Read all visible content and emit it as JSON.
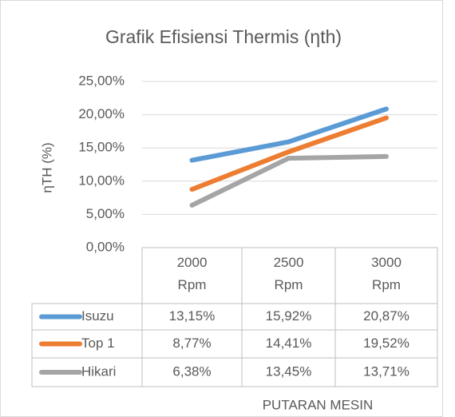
{
  "chart_data": {
    "type": "line",
    "title": "Grafik Efisiensi Thermis (ηth)",
    "x_label": "PUTARAN MESIN",
    "y_label": "ηTH (%)",
    "categories": [
      "2000 Rpm",
      "2500 Rpm",
      "3000 Rpm"
    ],
    "series": [
      {
        "name": "Isuzu",
        "color": "#5b9bd5",
        "values": [
          13.15,
          15.92,
          20.87
        ],
        "value_labels": [
          "13,15%",
          "15,92%",
          "20,87%"
        ]
      },
      {
        "name": "Top 1",
        "color": "#ed7d31",
        "values": [
          8.77,
          14.41,
          19.52
        ],
        "value_labels": [
          "8,77%",
          "14,41%",
          "19,52%"
        ]
      },
      {
        "name": "Hikari",
        "color": "#a5a5a5",
        "values": [
          6.38,
          13.45,
          13.71
        ],
        "value_labels": [
          "6,38%",
          "13,45%",
          "13,71%"
        ]
      }
    ],
    "ylim": [
      0,
      25
    ],
    "yticks": [
      {
        "value": 0,
        "label": "0,00%"
      },
      {
        "value": 5,
        "label": "5,00%"
      },
      {
        "value": 10,
        "label": "10,00%"
      },
      {
        "value": 15,
        "label": "15,00%"
      },
      {
        "value": 20,
        "label": "20,00%"
      },
      {
        "value": 25,
        "label": "25,00%"
      }
    ],
    "grid": true
  }
}
